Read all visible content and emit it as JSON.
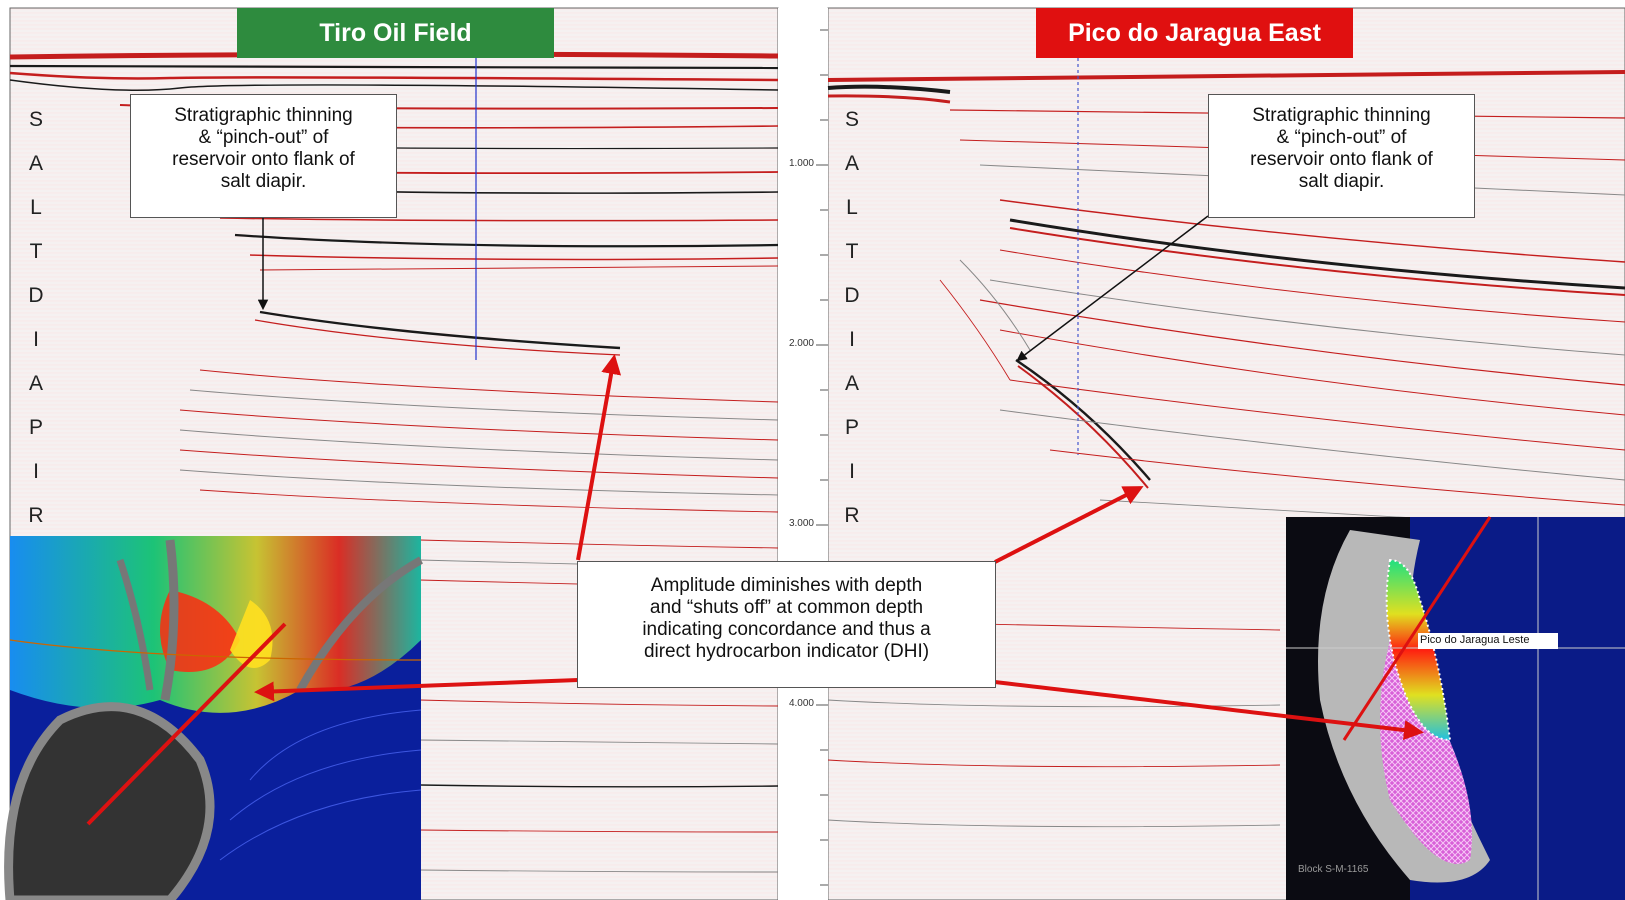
{
  "panels": {
    "left": {
      "title": "Tiro Oil Field",
      "title_color": "#2e8b3e",
      "salt_letters": [
        "S",
        "A",
        "L",
        "T",
        "D",
        "I",
        "A",
        "P",
        "I",
        "R"
      ]
    },
    "right": {
      "title": "Pico do Jaragua East",
      "title_color": "#e01010",
      "salt_letters": [
        "S",
        "A",
        "L",
        "T",
        "D",
        "I",
        "A",
        "P",
        "I",
        "R"
      ]
    }
  },
  "callouts": {
    "left_thinning": [
      "Stratigraphic thinning",
      "& “pinch-out” of",
      "reservoir onto flank of",
      "salt diapir."
    ],
    "right_thinning": [
      "Stratigraphic thinning",
      "& “pinch-out” of",
      "reservoir onto flank of",
      "salt diapir."
    ],
    "amplitude": [
      "Amplitude diminishes with depth",
      "and “shuts off” at common depth",
      "indicating concordance and thus a",
      "direct hydrocarbon indicator (DHI)"
    ]
  },
  "depth_axis": {
    "labels": [
      "1.000",
      "2.000",
      "3.000",
      "4.000"
    ]
  },
  "maps": {
    "right_map_label": "Pico do Jaragua Leste",
    "block_label": "Block S-M-1165"
  },
  "colors": {
    "arrow_red": "#dd1111",
    "seismic_red": "#c41e1e",
    "seismic_dark": "#1a1a1a",
    "map_blue": "#0a1f9c",
    "salt_grey": "#b8b8b8"
  }
}
